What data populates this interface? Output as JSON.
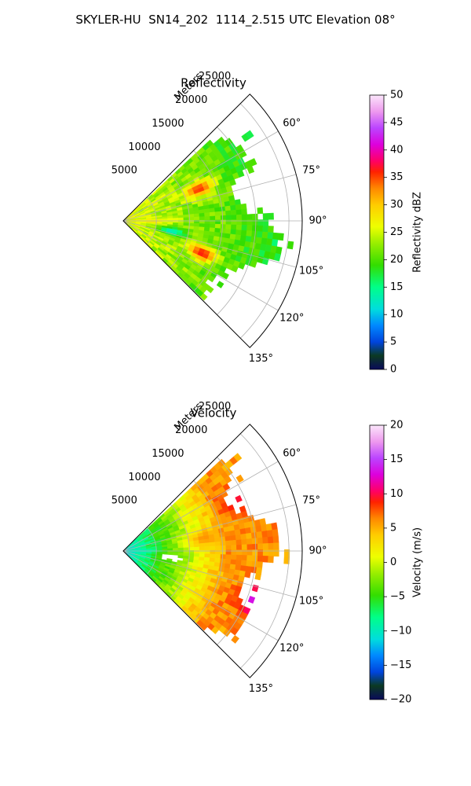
{
  "title": "SKYLER-HU  SN14_202  1114_2.515 UTC Elevation 08°",
  "chart_data": [
    {
      "type": "heatmap",
      "projection": "polar-sector",
      "title": "Reflectivity",
      "radial_label": "Meters",
      "radial_ticks": [
        5000,
        10000,
        15000,
        20000,
        25000
      ],
      "radial_range": [
        0,
        27000
      ],
      "angle_ticks": [
        "60°",
        "75°",
        "90°",
        "105°",
        "120°",
        "135°"
      ],
      "angle_tick_values": [
        60,
        75,
        90,
        105,
        120,
        135
      ],
      "angle_range": [
        45,
        135
      ],
      "grid": true,
      "colorbar": {
        "label": "Reflectivity dBZ",
        "range": [
          0,
          50
        ],
        "ticks": [
          "0",
          "5",
          "10",
          "15",
          "20",
          "25",
          "30",
          "35",
          "40",
          "45",
          "50"
        ]
      },
      "features": [
        {
          "angle": 66,
          "range": 12000,
          "value": 36
        },
        {
          "angle": 101,
          "range": 7000,
          "value": 12
        },
        {
          "angle": 111,
          "range": 12500,
          "value": 37
        },
        {
          "angle": 85,
          "range": 19000,
          "value": 20
        },
        {
          "angle": 90,
          "range": 4000,
          "value": 28
        }
      ]
    },
    {
      "type": "heatmap",
      "projection": "polar-sector",
      "title": "Velocity",
      "radial_label": "Meters",
      "radial_ticks": [
        5000,
        10000,
        15000,
        20000,
        25000
      ],
      "radial_range": [
        0,
        27000
      ],
      "angle_ticks": [
        "60°",
        "75°",
        "90°",
        "105°",
        "120°",
        "135°"
      ],
      "angle_tick_values": [
        60,
        75,
        90,
        105,
        120,
        135
      ],
      "angle_range": [
        45,
        135
      ],
      "grid": true,
      "colorbar": {
        "label": "Velocity (m/s)",
        "range": [
          -20,
          20
        ],
        "ticks": [
          "−20",
          "−15",
          "−10",
          "−5",
          "0",
          "5",
          "10",
          "15",
          "20"
        ]
      },
      "features": [
        {
          "angle": 90,
          "range": 2500,
          "value": -10
        },
        {
          "angle": 95,
          "range": 7000,
          "value": -3
        },
        {
          "angle": 80,
          "range": 12000,
          "value": 6
        },
        {
          "angle": 65,
          "range": 18000,
          "value": 10
        },
        {
          "angle": 110,
          "range": 21000,
          "value": 14
        }
      ]
    }
  ]
}
